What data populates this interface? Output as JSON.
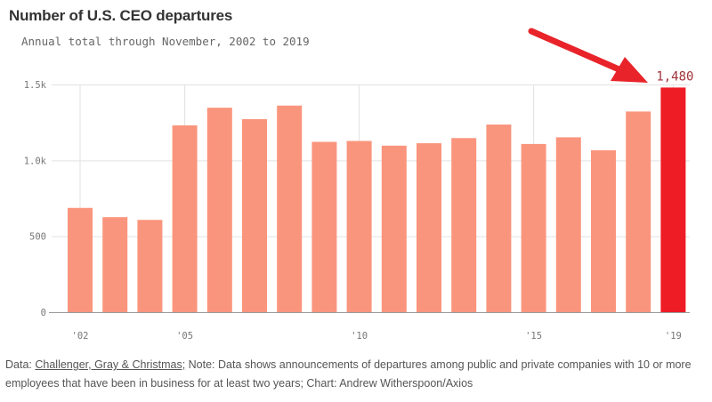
{
  "chart_data": {
    "type": "bar",
    "title": "Number of U.S. CEO departures",
    "subtitle": "Annual total through November, 2002 to 2019",
    "categories": [
      "2002",
      "2003",
      "2004",
      "2005",
      "2006",
      "2007",
      "2008",
      "2009",
      "2010",
      "2011",
      "2012",
      "2013",
      "2014",
      "2015",
      "2016",
      "2017",
      "2018",
      "2019"
    ],
    "values": [
      687,
      626,
      608,
      1231,
      1347,
      1272,
      1361,
      1122,
      1128,
      1097,
      1113,
      1147,
      1236,
      1108,
      1152,
      1067,
      1322,
      1480
    ],
    "highlight_index": 17,
    "highlight_label": "1,480",
    "xticks": [
      {
        "index": 0,
        "label": "'02"
      },
      {
        "index": 3,
        "label": "'05"
      },
      {
        "index": 8,
        "label": "'10"
      },
      {
        "index": 13,
        "label": "'15"
      },
      {
        "index": 17,
        "label": "'19"
      }
    ],
    "yticks": [
      {
        "value": 0,
        "label": "0"
      },
      {
        "value": 500,
        "label": "500"
      },
      {
        "value": 1000,
        "label": "1.0k"
      },
      {
        "value": 1500,
        "label": "1.5k"
      }
    ],
    "ylim": [
      0,
      1500
    ],
    "grid": true,
    "colors": {
      "bar": "#fa957d",
      "highlight": "#ee1c25",
      "arrow": "#e8242a",
      "grid": "#e2e2e2",
      "axis": "#9a9a9a"
    }
  },
  "footnote": {
    "prefix": "Data: ",
    "source": "Challenger, Gray & Christmas;",
    "text": " Note: Data shows announcements of departures among public and private companies with 10 or more employees that have been in business for at least two years; Chart: Andrew Witherspoon/Axios"
  }
}
